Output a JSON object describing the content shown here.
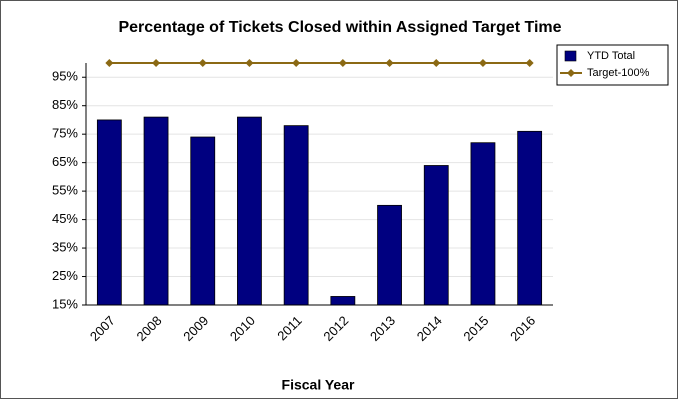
{
  "chart_data": {
    "type": "bar",
    "title": "Percentage of Tickets Closed within Assigned Target Time",
    "x_label": "Fiscal Year",
    "categories": [
      "2007",
      "2008",
      "2009",
      "2010",
      "2011",
      "2012",
      "2013",
      "2014",
      "2015",
      "2016"
    ],
    "series": [
      {
        "name": "YTD Total",
        "type": "bar",
        "color": "#000080",
        "values": [
          80,
          81,
          74,
          81,
          78,
          18,
          50,
          64,
          72,
          76
        ]
      },
      {
        "name": "Target-100%",
        "type": "line",
        "color": "#8b6914",
        "values": [
          100,
          100,
          100,
          100,
          100,
          100,
          100,
          100,
          100,
          100
        ]
      }
    ],
    "ylim": [
      15,
      100
    ],
    "yticks": [
      {
        "value": 15,
        "label": "15%"
      },
      {
        "value": 25,
        "label": "25%"
      },
      {
        "value": 35,
        "label": "35%"
      },
      {
        "value": 45,
        "label": "45%"
      },
      {
        "value": 55,
        "label": "55%"
      },
      {
        "value": 65,
        "label": "65%"
      },
      {
        "value": 75,
        "label": "75%"
      },
      {
        "value": 85,
        "label": "85%"
      },
      {
        "value": 95,
        "label": "95%"
      }
    ],
    "grid": true,
    "legend": "top-right"
  }
}
